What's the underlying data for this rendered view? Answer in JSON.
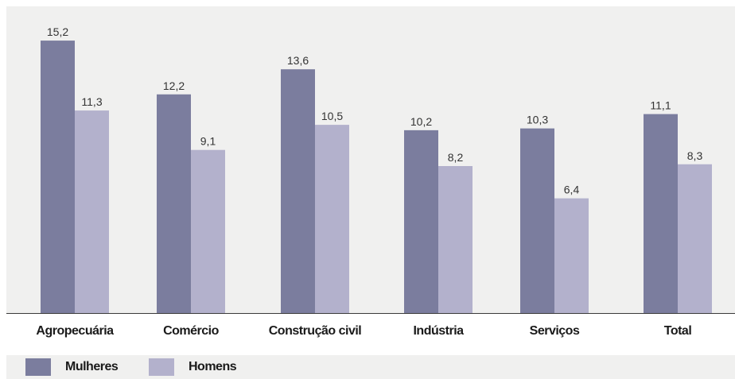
{
  "chart_data": {
    "type": "bar",
    "categories": [
      "Agropecuária",
      "Comércio",
      "Construção civil",
      "Indústria",
      "Serviços",
      "Total"
    ],
    "series": [
      {
        "name": "Mulheres",
        "values": [
          15.2,
          12.2,
          13.6,
          10.2,
          10.3,
          11.1
        ],
        "labels": [
          "15,2",
          "12,2",
          "13,6",
          "10,2",
          "10,3",
          "11,1"
        ],
        "color": "#7b7d9e"
      },
      {
        "name": "Homens",
        "values": [
          11.3,
          9.1,
          10.5,
          8.2,
          6.4,
          8.3
        ],
        "labels": [
          "11,3",
          "9,1",
          "10,5",
          "8,2",
          "6,4",
          "8,3"
        ],
        "color": "#b3b1cc"
      }
    ],
    "title": "",
    "xlabel": "",
    "ylabel": "",
    "ylim": [
      0,
      16
    ],
    "grid": false,
    "legend_position": "bottom-left"
  },
  "legend": {
    "items": [
      {
        "label": "Mulheres",
        "color": "#7b7d9e"
      },
      {
        "label": "Homens",
        "color": "#b3b1cc"
      }
    ]
  },
  "colors": {
    "panel_background": "#f0f0ef",
    "axis_line": "#3a3a3a"
  }
}
